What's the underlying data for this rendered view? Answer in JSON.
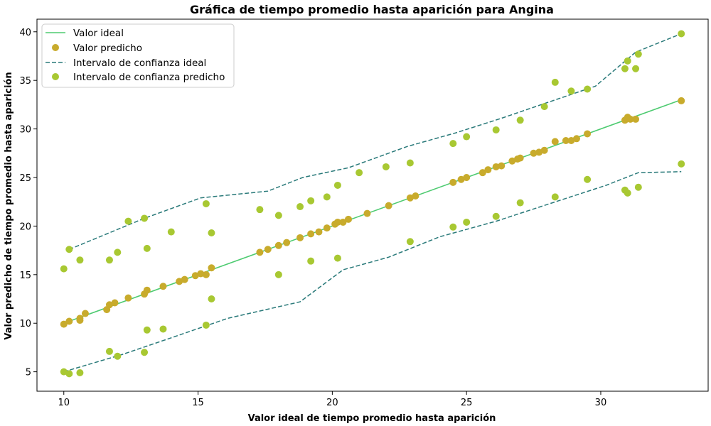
{
  "chart_data": {
    "type": "scatter",
    "title": "Gráfica de tiempo promedio hasta aparición para Angina",
    "xlabel": "Valor ideal de tiempo promedio hasta aparición",
    "ylabel": "Valor predicho de tiempo promedio hasta aparición",
    "xlim": [
      9.0,
      34.0
    ],
    "ylim": [
      3.0,
      41.3
    ],
    "x_ticks": [
      10,
      15,
      20,
      25,
      30
    ],
    "y_ticks": [
      5,
      10,
      15,
      20,
      25,
      30,
      35,
      40
    ],
    "grid": false,
    "legend_position": "top-left",
    "colors": {
      "ideal_line": "#4ecb71",
      "predicted": "#c8ab2c",
      "ci_ideal": "#2a7a7a",
      "ci_predicted": "#a8c832"
    },
    "legend": [
      "Valor ideal",
      "Valor predicho",
      "Intervalo de confianza ideal",
      "Intervalo de confianza predicho"
    ],
    "series": [
      {
        "name": "Valor ideal",
        "kind": "line",
        "x": [
          10.0,
          33.0
        ],
        "y": [
          10.0,
          33.0
        ]
      },
      {
        "name": "Valor predicho",
        "kind": "scatter",
        "x": [
          10.0,
          10.2,
          10.6,
          10.6,
          10.8,
          11.6,
          11.7,
          11.9,
          12.4,
          13.0,
          13.1,
          13.7,
          14.3,
          14.5,
          14.9,
          15.1,
          15.3,
          15.5,
          17.3,
          17.6,
          18.0,
          18.3,
          18.8,
          19.2,
          19.5,
          19.8,
          20.1,
          20.2,
          20.4,
          20.6,
          21.3,
          22.1,
          22.9,
          23.1,
          24.5,
          24.8,
          25.0,
          25.6,
          25.8,
          26.1,
          26.3,
          26.7,
          26.9,
          27.0,
          27.5,
          27.7,
          27.9,
          28.3,
          28.7,
          28.9,
          29.1,
          29.5,
          30.9,
          31.0,
          31.1,
          31.3,
          33.0
        ],
        "y": [
          9.9,
          10.2,
          10.5,
          10.3,
          11.0,
          11.4,
          11.9,
          12.1,
          12.6,
          13.0,
          13.4,
          13.8,
          14.3,
          14.5,
          14.9,
          15.1,
          15.0,
          15.7,
          17.3,
          17.6,
          18.0,
          18.3,
          18.8,
          19.2,
          19.4,
          19.8,
          20.2,
          20.4,
          20.4,
          20.7,
          21.3,
          22.1,
          22.9,
          23.1,
          24.5,
          24.8,
          25.0,
          25.5,
          25.8,
          26.1,
          26.2,
          26.7,
          26.9,
          27.0,
          27.5,
          27.6,
          27.8,
          28.7,
          28.8,
          28.8,
          29.0,
          29.5,
          30.9,
          31.2,
          31.0,
          31.0,
          32.9
        ]
      },
      {
        "name": "Intervalo de confianza ideal",
        "kind": "dashed-lines",
        "upper_x": [
          10.2,
          13.0,
          15.1,
          17.6,
          18.9,
          20.6,
          22.8,
          24.6,
          26.3,
          28.1,
          29.8,
          31.3,
          33.0
        ],
        "upper_y": [
          17.6,
          20.8,
          22.9,
          23.6,
          25.0,
          26.0,
          28.2,
          29.6,
          31.1,
          32.8,
          34.4,
          37.9,
          39.8
        ],
        "lower_x": [
          10.0,
          12.2,
          14.0,
          16.1,
          18.8,
          20.4,
          22.1,
          24.0,
          26.1,
          28.2,
          30.2,
          31.4,
          33.0
        ],
        "lower_y": [
          5.0,
          6.8,
          8.5,
          10.5,
          12.2,
          15.5,
          16.8,
          18.9,
          20.5,
          22.4,
          24.2,
          25.5,
          25.6
        ]
      },
      {
        "name": "Intervalo de confianza predicho",
        "kind": "scatter",
        "upper_x": [
          10.0,
          10.2,
          10.6,
          11.7,
          12.0,
          12.4,
          13.0,
          13.1,
          14.0,
          15.3,
          15.5,
          17.3,
          18.0,
          18.8,
          19.2,
          19.8,
          20.2,
          21.0,
          22.0,
          22.9,
          24.5,
          25.0,
          26.1,
          27.0,
          27.9,
          28.3,
          28.9,
          29.5,
          30.9,
          31.0,
          31.3,
          31.4,
          33.0
        ],
        "upper_y": [
          15.6,
          17.6,
          16.5,
          16.5,
          17.3,
          20.5,
          20.8,
          17.7,
          19.4,
          22.3,
          19.3,
          21.7,
          21.1,
          22.0,
          22.6,
          23.0,
          24.2,
          25.5,
          26.1,
          26.5,
          28.5,
          29.2,
          29.9,
          30.9,
          32.3,
          34.8,
          33.9,
          34.1,
          36.2,
          37.0,
          36.2,
          37.7,
          39.8
        ],
        "lower_x": [
          10.0,
          10.2,
          10.6,
          11.7,
          12.0,
          13.0,
          13.1,
          13.7,
          15.3,
          15.5,
          18.0,
          19.2,
          20.2,
          22.9,
          24.5,
          25.0,
          26.1,
          27.0,
          28.3,
          29.5,
          30.9,
          31.0,
          31.4,
          33.0
        ],
        "lower_y": [
          5.0,
          4.8,
          4.9,
          7.1,
          6.6,
          7.0,
          9.3,
          9.4,
          9.8,
          12.5,
          15.0,
          16.4,
          16.7,
          18.4,
          19.9,
          20.4,
          21.0,
          22.4,
          23.0,
          24.8,
          23.7,
          23.4,
          24.0,
          26.4
        ]
      }
    ]
  }
}
